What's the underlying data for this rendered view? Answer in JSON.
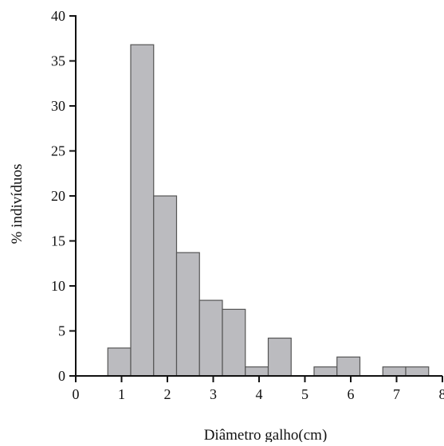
{
  "chart_data": {
    "type": "bar",
    "title": "",
    "xlabel": "Diâmetro galho(cm)",
    "ylabel": "% indivíduos",
    "xlim": [
      0,
      8
    ],
    "ylim": [
      0,
      40
    ],
    "x_ticks": [
      0,
      1,
      2,
      3,
      4,
      5,
      6,
      7,
      8
    ],
    "y_ticks": [
      0,
      5,
      10,
      15,
      20,
      25,
      30,
      35,
      40
    ],
    "x_tick_labels": [
      "0",
      "1",
      "2",
      "3",
      "4",
      "5",
      "6",
      "7",
      "8"
    ],
    "y_tick_labels": [
      "0",
      "5",
      "10",
      "15",
      "20",
      "25",
      "30",
      "35",
      "40"
    ],
    "bin_width": 0.5,
    "bins": [
      {
        "x0": 0.7,
        "x1": 1.2,
        "value": 3.1
      },
      {
        "x0": 1.2,
        "x1": 1.7,
        "value": 36.8
      },
      {
        "x0": 1.7,
        "x1": 2.2,
        "value": 20.0
      },
      {
        "x0": 2.2,
        "x1": 2.7,
        "value": 13.7
      },
      {
        "x0": 2.7,
        "x1": 3.2,
        "value": 8.4
      },
      {
        "x0": 3.2,
        "x1": 3.7,
        "value": 7.4
      },
      {
        "x0": 3.7,
        "x1": 4.2,
        "value": 1.0
      },
      {
        "x0": 4.2,
        "x1": 4.7,
        "value": 4.2
      },
      {
        "x0": 5.2,
        "x1": 5.7,
        "value": 1.0
      },
      {
        "x0": 5.7,
        "x1": 6.2,
        "value": 2.1
      },
      {
        "x0": 6.7,
        "x1": 7.2,
        "value": 1.0
      },
      {
        "x0": 7.2,
        "x1": 7.7,
        "value": 1.0
      }
    ],
    "grid": false,
    "legend": "none",
    "colors": {
      "bar_fill": "#bbbbbf",
      "bar_stroke": "#555555",
      "axis": "#111111"
    }
  }
}
